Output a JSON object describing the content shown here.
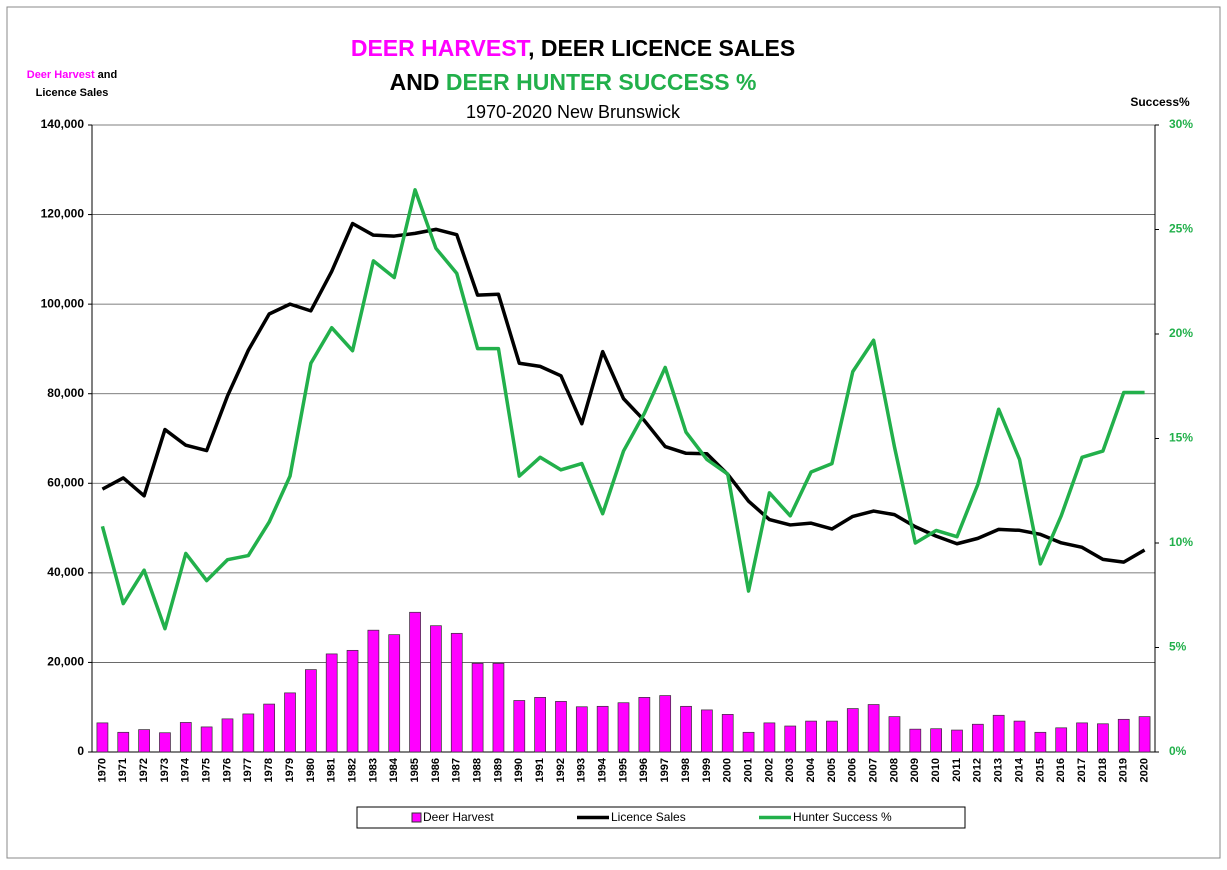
{
  "chart_data": {
    "type": "bar_line",
    "title": [
      [
        {
          "text": "DEER HARVEST",
          "color": "#ff00ff"
        },
        {
          "text": ", DEER LICENCE SALES",
          "color": "#000000"
        }
      ],
      [
        {
          "text": "AND ",
          "color": "#000000"
        },
        {
          "text": "DEER HUNTER SUCCESS %",
          "color": "#22b04b"
        }
      ]
    ],
    "subtitle": "1970-2020 New Brunswick",
    "y_label": [
      [
        {
          "text": "Deer Harvest",
          "color": "#ff00ff"
        },
        {
          "text": " and",
          "color": "#000000"
        }
      ],
      [
        {
          "text": "Licence Sales",
          "color": "#000000"
        }
      ]
    ],
    "y2_label": "Success%",
    "categories": [
      "1970",
      "1971",
      "1972",
      "1973",
      "1974",
      "1975",
      "1976",
      "1977",
      "1978",
      "1979",
      "1980",
      "1981",
      "1982",
      "1983",
      "1984",
      "1985",
      "1986",
      "1987",
      "1988",
      "1989",
      "1990",
      "1991",
      "1992",
      "1993",
      "1994",
      "1995",
      "1996",
      "1997",
      "1998",
      "1999",
      "2000",
      "2001",
      "2002",
      "2003",
      "2004",
      "2005",
      "2006",
      "2007",
      "2008",
      "2009",
      "2010",
      "2011",
      "2012",
      "2013",
      "2014",
      "2015",
      "2016",
      "2017",
      "2018",
      "2019",
      "2020"
    ],
    "series": [
      {
        "name": "Deer Harvest",
        "type": "bar",
        "color": "#ff00ff",
        "values": [
          6500,
          4400,
          5000,
          4300,
          6600,
          5600,
          7400,
          8500,
          10700,
          13200,
          18400,
          21900,
          22700,
          27200,
          26200,
          31200,
          28200,
          26500,
          19800,
          19800,
          11500,
          12200,
          11300,
          10100,
          10200,
          11000,
          12200,
          12600,
          10200,
          9400,
          8400,
          4400,
          6500,
          5800,
          6900,
          6900,
          9700,
          10600,
          7900,
          5100,
          5200,
          4900,
          6200,
          8200,
          6900,
          4400,
          5400,
          6500,
          6300,
          7300,
          7900
        ]
      },
      {
        "name": "Licence Sales",
        "type": "line",
        "color": "#000000",
        "values": [
          58700,
          61200,
          57200,
          72000,
          68500,
          67300,
          79500,
          89700,
          97800,
          100000,
          98500,
          107300,
          118000,
          115400,
          115200,
          115800,
          116700,
          115500,
          102000,
          102200,
          86800,
          86100,
          84000,
          73300,
          89400,
          78900,
          74000,
          68200,
          66700,
          66600,
          62000,
          56000,
          51900,
          50700,
          51100,
          49800,
          52600,
          53800,
          53000,
          50300,
          48200,
          46500,
          47700,
          49700,
          49500,
          48600,
          46700,
          45700,
          43000,
          42400,
          45100
        ]
      },
      {
        "name": "Hunter Success %",
        "type": "line",
        "axis": "y2",
        "color": "#22b04b",
        "values": [
          10.8,
          7.1,
          8.7,
          5.9,
          9.5,
          8.2,
          9.2,
          9.4,
          11.0,
          13.2,
          18.6,
          20.3,
          19.2,
          23.5,
          22.7,
          26.9,
          24.1,
          22.9,
          19.3,
          19.3,
          13.2,
          14.1,
          13.5,
          13.8,
          11.4,
          14.4,
          16.2,
          18.4,
          15.3,
          14.0,
          13.3,
          7.7,
          12.4,
          11.3,
          13.4,
          13.8,
          18.2,
          19.7,
          14.6,
          10.0,
          10.6,
          10.3,
          12.8,
          16.4,
          14.0,
          9.0,
          11.3,
          14.1,
          14.4,
          17.2,
          17.2
        ]
      }
    ],
    "ylim": [
      0,
      140000
    ],
    "yticks": [
      {
        "value": 0,
        "label": "0"
      },
      {
        "value": 20000,
        "label": "20,000"
      },
      {
        "value": 40000,
        "label": "40,000"
      },
      {
        "value": 60000,
        "label": "60,000"
      },
      {
        "value": 80000,
        "label": "80,000"
      },
      {
        "value": 100000,
        "label": "100,000"
      },
      {
        "value": 120000,
        "label": "120,000"
      },
      {
        "value": 140000,
        "label": "140,000"
      }
    ],
    "y2lim": [
      0,
      30
    ],
    "y2ticks": [
      {
        "value": 0,
        "label": "0%"
      },
      {
        "value": 5,
        "label": "5%"
      },
      {
        "value": 10,
        "label": "10%"
      },
      {
        "value": 15,
        "label": "15%"
      },
      {
        "value": 20,
        "label": "20%"
      },
      {
        "value": 25,
        "label": "25%"
      },
      {
        "value": 30,
        "label": "30%"
      }
    ],
    "y2_color": "#22b04b",
    "grid": true,
    "legend": "bottom"
  }
}
